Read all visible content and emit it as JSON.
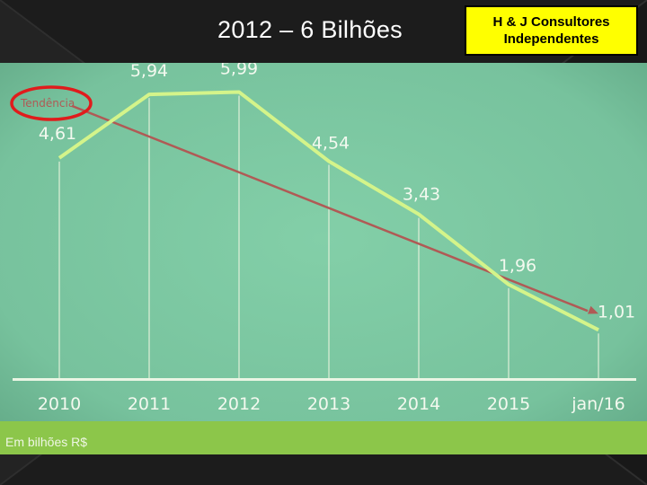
{
  "slide": {
    "title": "2012 – 6 Bilhões",
    "logo_line1": "H & J Consultores",
    "logo_line2": "Independentes"
  },
  "chart_data": {
    "type": "line",
    "categories": [
      "2010",
      "2011",
      "2012",
      "2013",
      "2014",
      "2015",
      "jan/16"
    ],
    "series": [
      {
        "values": [
          4.61,
          5.94,
          5.99,
          4.54,
          3.43,
          1.96,
          1.01
        ],
        "color": "#d4f48a"
      }
    ],
    "data_labels": [
      "4,61",
      "5,94",
      "5,99",
      "4,54",
      "3,43",
      "1,96",
      "1,01"
    ],
    "trend": {
      "label": "Tendência",
      "from": 5.7,
      "to": 1.35,
      "color": "#b05a55"
    },
    "annotation": "Em bilhões R$",
    "ylim": [
      0,
      6.6
    ],
    "grid": "vertical",
    "colors": {
      "background": "#7cc9a3",
      "axis_band": "#8cc64a",
      "label_text": "#f3f9ef"
    }
  }
}
